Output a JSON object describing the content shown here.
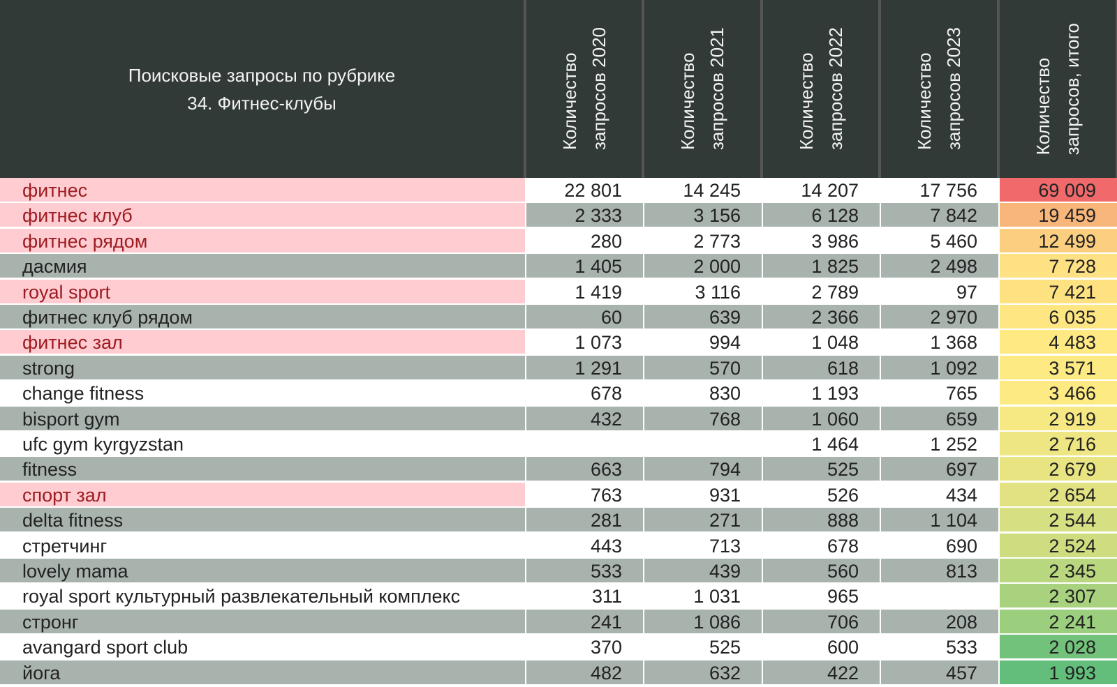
{
  "header": {
    "title": [
      "Поисковые запросы по рубрике",
      "34. Фитнес-клубы"
    ],
    "columns": [
      [
        "Количество",
        "запросов 2020"
      ],
      [
        "Количество",
        "запросов 2021"
      ],
      [
        "Количество",
        "запросов 2022"
      ],
      [
        "Количество",
        "запросов 2023"
      ],
      [
        "Количество",
        "запросов, итого"
      ]
    ]
  },
  "table": {
    "rows": [
      {
        "label": "фитнес",
        "highlighted": true,
        "cells": [
          "22 801",
          "14 245",
          "14 207",
          "17 756",
          "69 009"
        ],
        "total_color": "#f0696b"
      },
      {
        "label": "фитнес клуб",
        "highlighted": true,
        "cells": [
          "2 333",
          "3 156",
          "6 128",
          "7 842",
          "19 459"
        ],
        "total_color": "#f9b67a"
      },
      {
        "label": "фитнес рядом",
        "highlighted": true,
        "cells": [
          "280",
          "2 773",
          "3 986",
          "5 460",
          "12 499"
        ],
        "total_color": "#fbcf7f"
      },
      {
        "label": "дасмия",
        "highlighted": false,
        "cells": [
          "1 405",
          "2 000",
          "1 825",
          "2 498",
          "7 728"
        ],
        "total_color": "#fee182"
      },
      {
        "label": "royal sport",
        "highlighted": true,
        "cells": [
          "1 419",
          "3 116",
          "2 789",
          "97",
          "7 421"
        ],
        "total_color": "#fee282"
      },
      {
        "label": "фитнес клуб рядом",
        "highlighted": false,
        "cells": [
          "60",
          "639",
          "2 366",
          "2 970",
          "6 035"
        ],
        "total_color": "#fee683"
      },
      {
        "label": "фитнес зал",
        "highlighted": true,
        "cells": [
          "1 073",
          "994",
          "1 048",
          "1 368",
          "4 483"
        ],
        "total_color": "#fee983"
      },
      {
        "label": "strong",
        "highlighted": false,
        "cells": [
          "1 291",
          "570",
          "618",
          "1 092",
          "3 571"
        ],
        "total_color": "#feea83"
      },
      {
        "label": "change fitness",
        "highlighted": false,
        "cells": [
          "678",
          "830",
          "1 193",
          "765",
          "3 466"
        ],
        "total_color": "#fdea83"
      },
      {
        "label": "bisport gym",
        "highlighted": false,
        "cells": [
          "432",
          "768",
          "1 060",
          "659",
          "2 919"
        ],
        "total_color": "#f6e883"
      },
      {
        "label": "ufc gym kyrgyzstan",
        "highlighted": false,
        "cells": [
          null,
          null,
          "1 464",
          "1 252",
          "2 716"
        ],
        "total_color": "#eee682"
      },
      {
        "label": "fitness",
        "highlighted": false,
        "cells": [
          "663",
          "794",
          "525",
          "697",
          "2 679"
        ],
        "total_color": "#e8e482"
      },
      {
        "label": "спорт зал",
        "highlighted": true,
        "cells": [
          "763",
          "931",
          "526",
          "434",
          "2 654"
        ],
        "total_color": "#e2e282"
      },
      {
        "label": "delta fitness",
        "highlighted": false,
        "cells": [
          "281",
          "271",
          "888",
          "1 104",
          "2 544"
        ],
        "total_color": "#d6df81"
      },
      {
        "label": "стретчинг",
        "highlighted": false,
        "cells": [
          "443",
          "713",
          "678",
          "690",
          "2 524"
        ],
        "total_color": "#cfdd80"
      },
      {
        "label": "lovely mama",
        "highlighted": false,
        "cells": [
          "533",
          "439",
          "560",
          "813",
          "2 345"
        ],
        "total_color": "#b9d77f"
      },
      {
        "label": "royal sport культурный развлекательный комплекс",
        "highlighted": false,
        "cells": [
          "311",
          "1 031",
          "965",
          null,
          "2 307"
        ],
        "total_color": "#a9d27e"
      },
      {
        "label": "стронг",
        "highlighted": false,
        "cells": [
          "241",
          "1 086",
          "706",
          "208",
          "2 241"
        ],
        "total_color": "#9bce7d"
      },
      {
        "label": "avangard sport club",
        "highlighted": false,
        "cells": [
          "370",
          "525",
          "600",
          "533",
          "2 028"
        ],
        "total_color": "#72c27b"
      },
      {
        "label": "йога",
        "highlighted": false,
        "cells": [
          "482",
          "632",
          "422",
          "457",
          "1 993"
        ],
        "total_color": "#63be7b"
      }
    ]
  }
}
